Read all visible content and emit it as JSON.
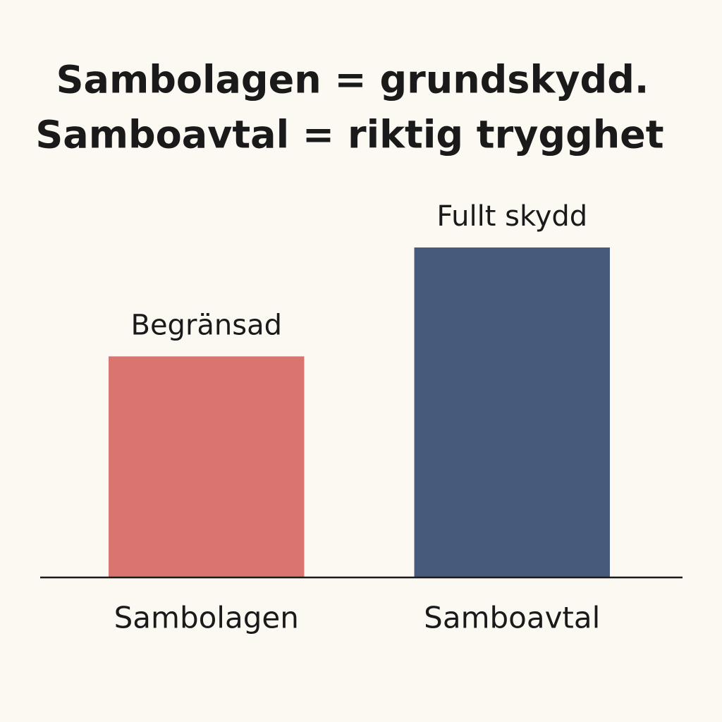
{
  "chart_data": {
    "type": "bar",
    "title": [
      "Sambolagen = grundskydd.",
      "Samboavtal = riktig trygghet"
    ],
    "categories": [
      "Sambolagen",
      "Samboavtal"
    ],
    "values": [
      67,
      100
    ],
    "value_labels": [
      "Begränsad",
      "Fullt skydd"
    ],
    "colors": [
      "#d97470",
      "#475a7b"
    ],
    "ylim": [
      0,
      100
    ]
  }
}
